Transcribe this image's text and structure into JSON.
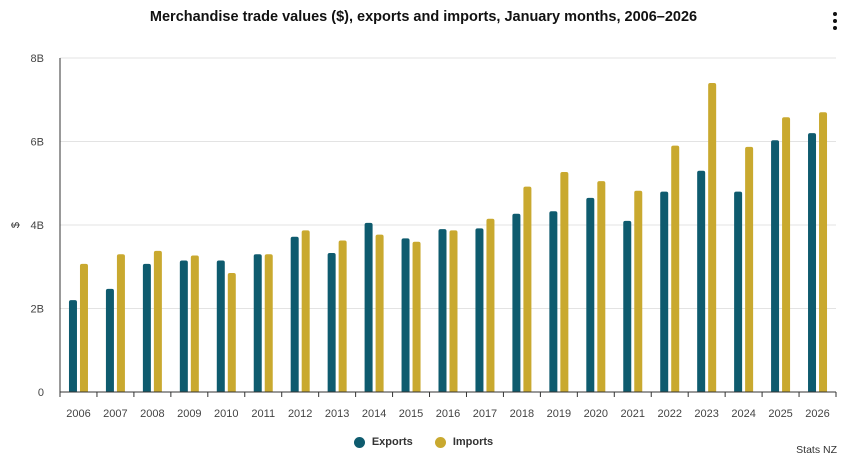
{
  "chart_data": {
    "type": "bar",
    "title": "Merchandise trade values ($), exports and imports, January months, 2006–2026",
    "xlabel": "",
    "ylabel": "$",
    "ylim": [
      0,
      8000000000
    ],
    "yticks": [
      {
        "value": 0,
        "label": "0"
      },
      {
        "value": 2000000000,
        "label": "2B"
      },
      {
        "value": 4000000000,
        "label": "4B"
      },
      {
        "value": 6000000000,
        "label": "6B"
      },
      {
        "value": 8000000000,
        "label": "8B"
      }
    ],
    "categories": [
      "2006",
      "2007",
      "2008",
      "2009",
      "2010",
      "2011",
      "2012",
      "2013",
      "2014",
      "2015",
      "2016",
      "2017",
      "2018",
      "2019",
      "2020",
      "2021",
      "2022",
      "2023",
      "2024",
      "2025",
      "2026"
    ],
    "series": [
      {
        "name": "Exports",
        "color": "#0e5b6e",
        "values": [
          2200000000.0,
          2470000000.0,
          3070000000.0,
          3150000000.0,
          3150000000.0,
          3300000000.0,
          3720000000.0,
          3330000000.0,
          4050000000.0,
          3680000000.0,
          3900000000.0,
          3920000000.0,
          4270000000.0,
          4330000000.0,
          4650000000.0,
          4100000000.0,
          4800000000.0,
          5300000000.0,
          4800000000.0,
          6030000000.0,
          6200000000.0
        ]
      },
      {
        "name": "Imports",
        "color": "#c9a92f",
        "values": [
          3070000000.0,
          3300000000.0,
          3380000000.0,
          3270000000.0,
          2850000000.0,
          3300000000.0,
          3870000000.0,
          3630000000.0,
          3770000000.0,
          3600000000.0,
          3870000000.0,
          4150000000.0,
          4920000000.0,
          5270000000.0,
          5050000000.0,
          4820000000.0,
          5900000000.0,
          7400000000.0,
          5870000000.0,
          6580000000.0,
          6700000000.0
        ]
      }
    ],
    "legend": "bottom-center"
  },
  "credit": "Stats NZ",
  "menu_icon": "kebab-menu-icon"
}
